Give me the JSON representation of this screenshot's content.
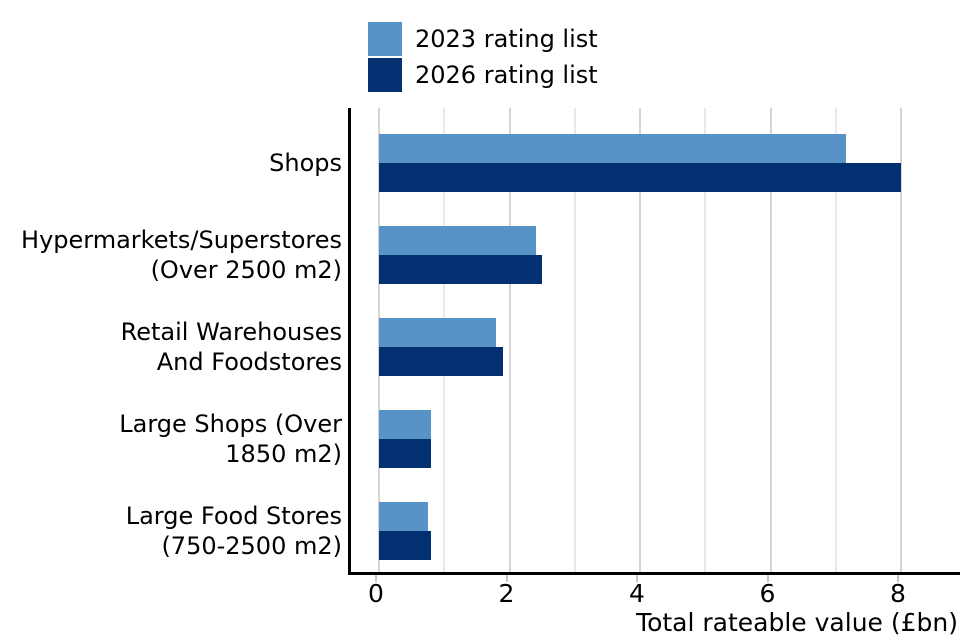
{
  "legend": {
    "items": [
      {
        "label": "2023 rating list",
        "color": "#5893c8"
      },
      {
        "label": "2026 rating list",
        "color": "#023070"
      }
    ]
  },
  "chart_data": {
    "type": "bar",
    "orientation": "horizontal",
    "title": "",
    "xlabel": "Total rateable value (£bn)",
    "ylabel": "",
    "categories": [
      "Shops",
      "Hypermarkets/Superstores\n(Over 2500 m2)",
      "Retail Warehouses\nAnd Foodstores",
      "Large Shops (Over\n1850 m2)",
      "Large Food Stores\n(750-2500 m2)"
    ],
    "series": [
      {
        "name": "2023 rating list",
        "color": "#5893c8",
        "values": [
          7.15,
          2.4,
          1.8,
          0.8,
          0.75
        ]
      },
      {
        "name": "2026 rating list",
        "color": "#023070",
        "values": [
          8.0,
          2.5,
          1.9,
          0.8,
          0.8
        ]
      }
    ],
    "xlim": [
      0,
      8.95
    ],
    "xticks_major": [
      0,
      2,
      4,
      6,
      8
    ],
    "xticks_minor": [
      1,
      3,
      5,
      7
    ],
    "grid": true,
    "legend_position": "top-left"
  }
}
